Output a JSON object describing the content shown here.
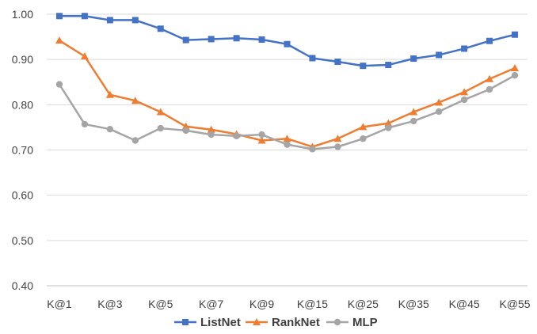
{
  "chart_data": {
    "type": "line",
    "title": "",
    "xlabel": "",
    "ylabel": "",
    "ylim": [
      0.4,
      1.0
    ],
    "y_ticks": [
      "0.40",
      "0.50",
      "0.60",
      "0.70",
      "0.80",
      "0.90",
      "1.00"
    ],
    "y_tick_values": [
      0.4,
      0.5,
      0.6,
      0.7,
      0.8,
      0.9,
      1.0
    ],
    "x_points": 19,
    "x_tick_labels": [
      {
        "index": 0,
        "label": "K@1"
      },
      {
        "index": 2,
        "label": "K@3"
      },
      {
        "index": 4,
        "label": "K@5"
      },
      {
        "index": 6,
        "label": "K@7"
      },
      {
        "index": 8,
        "label": "K@9"
      },
      {
        "index": 10,
        "label": "K@15"
      },
      {
        "index": 12,
        "label": "K@25"
      },
      {
        "index": 14,
        "label": "K@35"
      },
      {
        "index": 16,
        "label": "K@45"
      },
      {
        "index": 18,
        "label": "K@55"
      }
    ],
    "grid": true,
    "legend_position": "bottom",
    "series": [
      {
        "name": "ListNet",
        "color": "#4472C4",
        "marker": "square",
        "values": [
          0.996,
          0.996,
          0.987,
          0.987,
          0.968,
          0.943,
          0.945,
          0.947,
          0.944,
          0.934,
          0.903,
          0.895,
          0.886,
          0.888,
          0.902,
          0.91,
          0.924,
          0.941,
          0.955
        ]
      },
      {
        "name": "RankNet",
        "color": "#ED7D31",
        "marker": "triangle",
        "values": [
          0.942,
          0.907,
          0.822,
          0.809,
          0.784,
          0.752,
          0.745,
          0.735,
          0.721,
          0.725,
          0.707,
          0.725,
          0.751,
          0.759,
          0.784,
          0.805,
          0.828,
          0.857,
          0.881
        ]
      },
      {
        "name": "MLP",
        "color": "#A5A5A5",
        "marker": "circle",
        "values": [
          0.845,
          0.757,
          0.746,
          0.721,
          0.748,
          0.743,
          0.734,
          0.731,
          0.734,
          0.712,
          0.702,
          0.707,
          0.725,
          0.749,
          0.764,
          0.785,
          0.811,
          0.834,
          0.865
        ]
      }
    ]
  }
}
